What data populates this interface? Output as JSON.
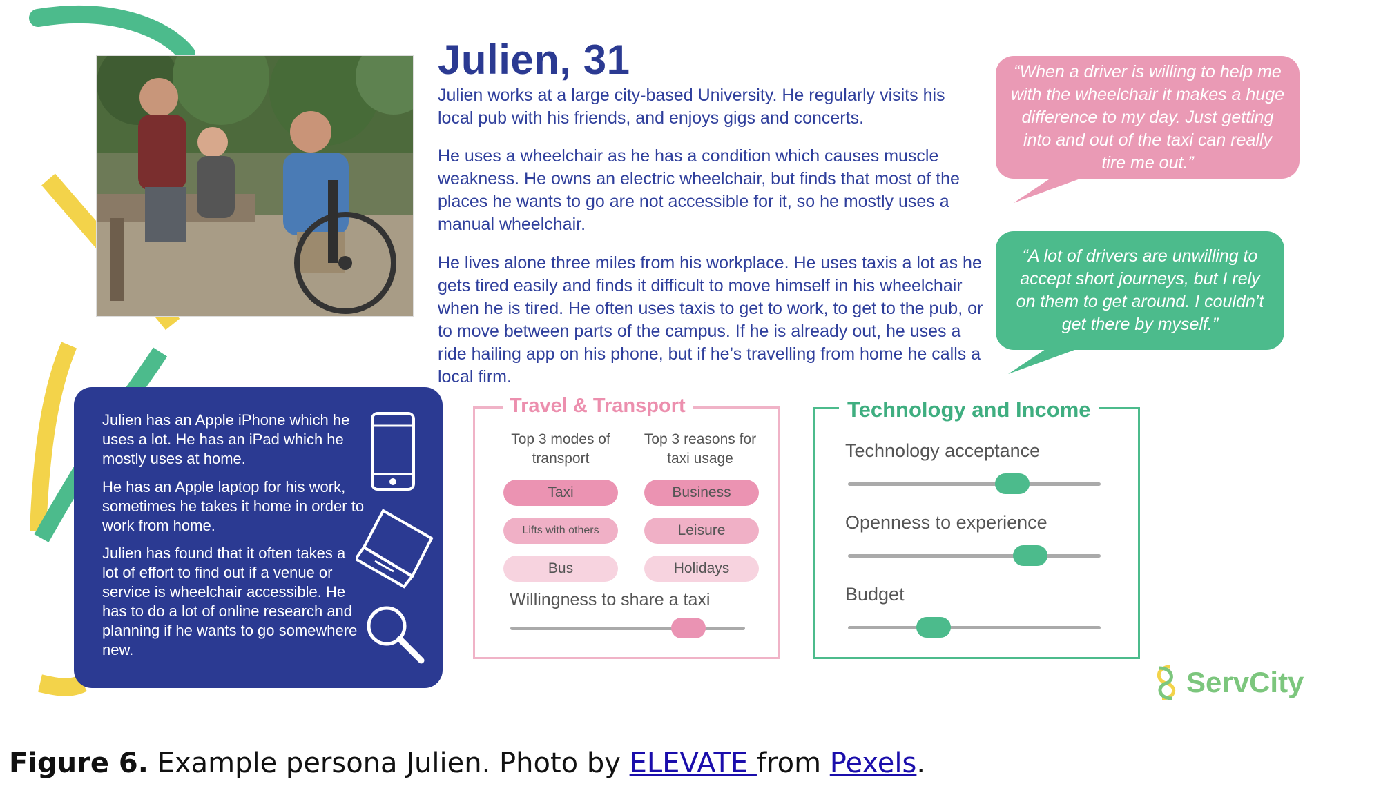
{
  "persona": {
    "title": "Julien, 31",
    "paragraphs": [
      "Julien works at a large city-based University. He regularly visits his local pub with his friends, and enjoys gigs and concerts.",
      "He uses a wheelchair as he has a condition which causes muscle weakness. He owns an electric wheelchair, but finds that most of the places he wants to go are not accessible for it, so he mostly uses a manual wheelchair.",
      "He lives alone three miles from his workplace. He uses taxis a lot as he gets tired easily and finds it difficult to move himself in his wheelchair when he is tired. He often uses taxis to get to work, to get to the pub, or to move between parts of the campus. If he is already out, he uses a ride hailing app on his phone, but if he’s travelling from home he calls a local firm."
    ]
  },
  "quotes": {
    "pink": "“When a driver is willing to help me with the wheelchair it makes a huge difference to my day. Just getting into and out of the taxi can really tire me out.”",
    "green": "“A lot of drivers are unwilling to accept short journeys, but I rely on them to get around. I couldn’t get there by myself.”"
  },
  "technology_box": {
    "paragraphs": [
      "Julien has an Apple iPhone which he uses a lot. He has an iPad which he mostly uses at home.",
      "He has an Apple laptop for his work, sometimes he takes it home in order to work from home.",
      "Julien has found that it often takes a lot of effort to find out if a venue or service is wheelchair accessible. He has to do a lot of online research and planning if he wants to go somewhere new."
    ],
    "icons": [
      "smartphone-icon",
      "laptop-icon",
      "magnifier-icon"
    ]
  },
  "travel": {
    "title": "Travel & Transport",
    "modes_header": "Top 3 modes of transport",
    "reasons_header": "Top 3 reasons for taxi usage",
    "modes": [
      "Taxi",
      "Lifts with others",
      "Bus"
    ],
    "reasons": [
      "Business",
      "Leisure",
      "Holidays"
    ],
    "willingness_label": "Willingness to share a taxi",
    "willingness_level": 0.76
  },
  "tech_income": {
    "title": "Technology and Income",
    "sliders": [
      {
        "label": "Technology acceptance",
        "level": 0.65
      },
      {
        "label": "Openness to experience",
        "level": 0.72
      },
      {
        "label": "Budget",
        "level": 0.34
      }
    ]
  },
  "logo": {
    "text": "ServCity"
  },
  "caption": {
    "label": "Figure 6.",
    "text_before": "Example persona Julien. Photo by",
    "link1": "ELEVATE ",
    "middle": "from",
    "link2": "Pexels",
    "end": "."
  },
  "colors": {
    "navy": "#2b3a92",
    "pink": "#ea9ab5",
    "green": "#4cbb8c",
    "yellow": "#f3d34a"
  }
}
